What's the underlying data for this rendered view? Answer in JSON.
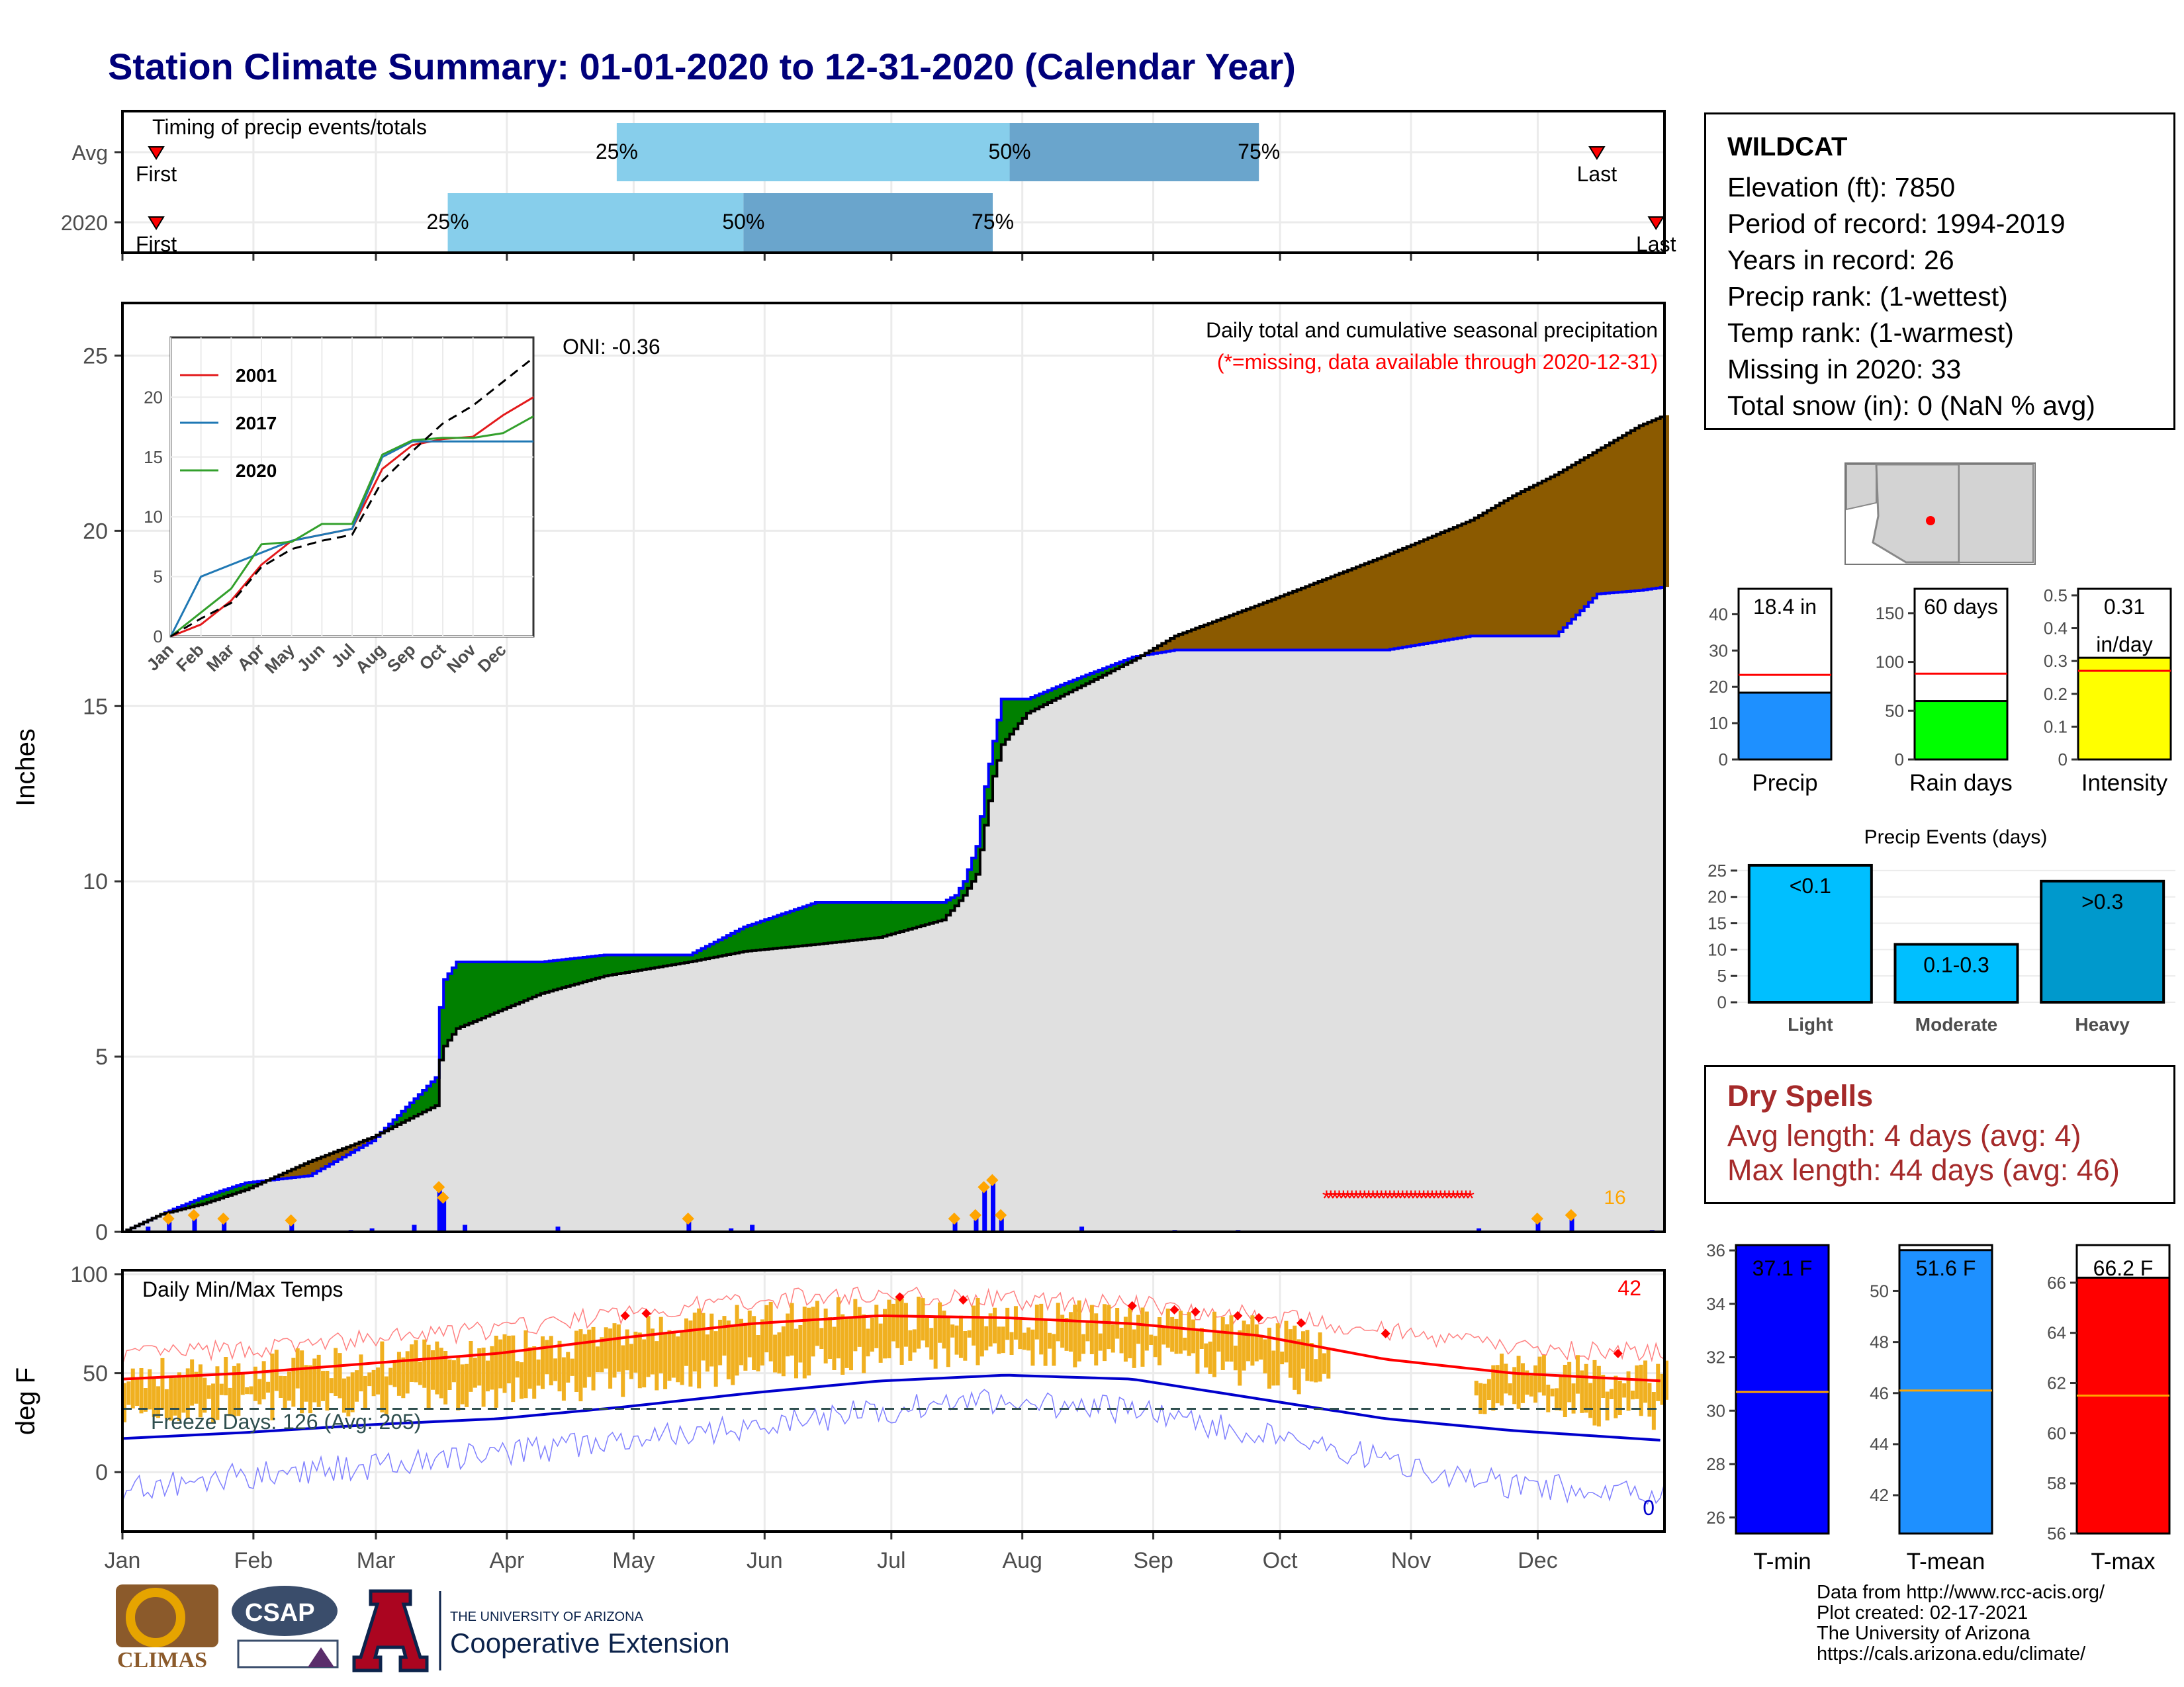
{
  "title": "Station Climate Summary: 01-01-2020 to 12-31-2020 (Calendar Year)",
  "station": {
    "name": "WILDCAT",
    "lines": [
      "Elevation (ft): 7850",
      "Period of record: 1994-2019",
      "Years in record: 26",
      "Precip rank:  (1-wettest)",
      "Temp rank:  (1-warmest)",
      "Missing in 2020: 33",
      "Total snow (in): 0 (NaN % avg)"
    ]
  },
  "dry_spells": {
    "title": "Dry Spells",
    "avg_length": "Avg length: 4 days (avg: 4)",
    "max_length": "Max length: 44 days (avg: 46)"
  },
  "credits": [
    "Data from http://www.rcc-acis.org/",
    "Plot created: 02-17-2021",
    "The University of Arizona",
    "https://cals.arizona.edu/climate/"
  ],
  "logos": {
    "climas": "CLIMAS",
    "csap": "CSAP",
    "ua_small": "THE UNIVERSITY OF ARIZONA",
    "ua_big": "Cooperative Extension"
  },
  "colors": {
    "observed_fill": "#e0e0e0",
    "above_avg": "#008000",
    "below_avg": "#8b5a00",
    "avg_line": "#0000ff",
    "daily_bar": "#0000ff",
    "missing": "#ff0000",
    "temp_range": "#f0b020",
    "tmax_line": "#ff0000",
    "tmin_line": "#0000cc",
    "q1": "#87ceeb",
    "q2": "#6aa5cc"
  },
  "chart_data": [
    {
      "id": "timing",
      "type": "bar",
      "title": "Timing of precip events/totals",
      "categories": [
        "Avg",
        "2020"
      ],
      "x_ticks": [
        "Jan",
        "Feb",
        "Mar",
        "Apr",
        "May",
        "Jun",
        "Jul",
        "Aug",
        "Sep",
        "Oct",
        "Nov",
        "Dec"
      ],
      "series": [
        {
          "category": "Avg",
          "first": "First",
          "first_day": 9,
          "p25_label": "25%",
          "p25_day": 118,
          "p50_label": "50%",
          "p50_day": 211,
          "p75_label": "75%",
          "p75_day": 270,
          "last": "Last",
          "last_day": 350
        },
        {
          "category": "2020",
          "first": "First",
          "first_day": 9,
          "p25_label": "25%",
          "p25_day": 78,
          "p50_label": "50%",
          "p50_day": 148,
          "p75_label": "75%",
          "p75_day": 207,
          "last": "Last",
          "last_day": 364
        }
      ]
    },
    {
      "id": "cumulative",
      "type": "area",
      "title": "Daily total and cumulative seasonal precipitation",
      "subtitle": "(*=missing, data available through 2020-12-31)",
      "ylabel": "Inches",
      "oni": "ONI: -0.36",
      "ylim": [
        0,
        26.5
      ],
      "yticks": [
        0,
        5,
        10,
        15,
        20,
        25
      ],
      "x_ticks": [
        "Jan",
        "Feb",
        "Mar",
        "Apr",
        "May",
        "Jun",
        "Jul",
        "Aug",
        "Sep",
        "Oct",
        "Nov",
        "Dec"
      ],
      "x": [
        1,
        10,
        20,
        30,
        45,
        60,
        75,
        76,
        77,
        80,
        100,
        115,
        135,
        148,
        165,
        180,
        195,
        198,
        200,
        203,
        205,
        207,
        209,
        215,
        225,
        240,
        250,
        270,
        300,
        320,
        330,
        340,
        350,
        360,
        366
      ],
      "avg_cumulative": [
        0,
        0.5,
        0.8,
        1.2,
        2.0,
        2.7,
        3.6,
        4.9,
        5.3,
        5.8,
        6.8,
        7.3,
        7.7,
        8.0,
        8.2,
        8.4,
        8.9,
        9.3,
        9.6,
        10.2,
        11.6,
        13.0,
        13.9,
        14.8,
        15.4,
        16.3,
        17.0,
        17.9,
        19.3,
        20.3,
        21.0,
        21.6,
        22.3,
        23.0,
        23.3
      ],
      "series": [
        {
          "name": "2020 cumulative",
          "values": [
            0,
            0.5,
            1.0,
            1.4,
            1.6,
            2.6,
            4.4,
            6.4,
            7.2,
            7.7,
            7.7,
            7.9,
            7.9,
            8.7,
            9.4,
            9.4,
            9.4,
            9.6,
            10.0,
            11.0,
            12.7,
            14.0,
            15.2,
            15.2,
            15.7,
            16.4,
            16.6,
            16.6,
            16.6,
            17.0,
            17.0,
            17.0,
            18.2,
            18.3,
            18.4
          ]
        }
      ],
      "daily_precip": [
        {
          "day": 7,
          "value": 0.15
        },
        {
          "day": 12,
          "value": 0.3
        },
        {
          "day": 18,
          "value": 0.4
        },
        {
          "day": 25,
          "value": 0.3
        },
        {
          "day": 41,
          "value": 0.25
        },
        {
          "day": 55,
          "value": 0.05
        },
        {
          "day": 60,
          "value": 0.1
        },
        {
          "day": 70,
          "value": 0.2
        },
        {
          "day": 76,
          "value": 1.2
        },
        {
          "day": 77,
          "value": 0.9
        },
        {
          "day": 82,
          "value": 0.2
        },
        {
          "day": 104,
          "value": 0.15
        },
        {
          "day": 135,
          "value": 0.3
        },
        {
          "day": 145,
          "value": 0.1
        },
        {
          "day": 150,
          "value": 0.2
        },
        {
          "day": 198,
          "value": 0.3
        },
        {
          "day": 203,
          "value": 0.4
        },
        {
          "day": 205,
          "value": 1.2
        },
        {
          "day": 207,
          "value": 1.4
        },
        {
          "day": 209,
          "value": 0.4
        },
        {
          "day": 228,
          "value": 0.15
        },
        {
          "day": 250,
          "value": 0.05
        },
        {
          "day": 265,
          "value": 0.05
        },
        {
          "day": 322,
          "value": 0.1
        },
        {
          "day": 336,
          "value": 0.3
        },
        {
          "day": 344,
          "value": 0.4
        },
        {
          "day": 363,
          "value": 0.05
        }
      ],
      "missing_range": [
        286,
        320
      ],
      "missing_count": "16"
    },
    {
      "id": "inset",
      "type": "line",
      "x_ticks": [
        "Jan",
        "Feb",
        "Mar",
        "Apr",
        "May",
        "Jun",
        "Jul",
        "Aug",
        "Sep",
        "Oct",
        "Nov",
        "Dec"
      ],
      "ylim": [
        0,
        25
      ],
      "yticks": [
        0,
        5,
        10,
        15,
        20
      ],
      "series": [
        {
          "name": "2001",
          "color": "#e31a1c",
          "values": [
            0,
            1,
            3,
            6,
            8,
            8.5,
            9,
            14,
            16,
            16.5,
            16.7,
            18.5,
            20
          ]
        },
        {
          "name": "2017",
          "color": "#1f78b4",
          "values": [
            0,
            5,
            6,
            7,
            8,
            8.5,
            9,
            15,
            16.3,
            16.3,
            16.3,
            16.3,
            16.3
          ]
        },
        {
          "name": "2020",
          "color": "#33a02c",
          "values": [
            0,
            2,
            4,
            7.7,
            7.9,
            9.4,
            9.4,
            15.2,
            16.4,
            16.6,
            16.6,
            17,
            18.4
          ]
        },
        {
          "name": "avg",
          "color": "#000000",
          "values": [
            0,
            1.5,
            2.8,
            5.8,
            7.3,
            8.0,
            8.5,
            13,
            15.5,
            17.8,
            19.3,
            21.3,
            23.3
          ]
        }
      ]
    },
    {
      "id": "totals",
      "type": "bar",
      "categories": [
        "Precip",
        "Rain days",
        "Intensity"
      ],
      "series": [
        {
          "name": "Precip",
          "value": 18.4,
          "label": "18.4 in",
          "avg": 23.3,
          "ylim": [
            0,
            47
          ],
          "yticks": [
            0,
            10,
            20,
            30,
            40
          ],
          "color": "#1e90ff"
        },
        {
          "name": "Rain days",
          "value": 60,
          "label": "60 days",
          "avg": 88,
          "ylim": [
            0,
            175
          ],
          "yticks": [
            0,
            50,
            100,
            150
          ],
          "color": "#00ff00"
        },
        {
          "name": "Intensity",
          "value": 0.31,
          "label": "0.31",
          "label2": "in/day",
          "avg": 0.27,
          "ylim": [
            0,
            0.52
          ],
          "yticks": [
            0.0,
            0.1,
            0.2,
            0.3,
            0.4,
            0.5
          ],
          "color": "#ffff00"
        }
      ]
    },
    {
      "id": "events",
      "type": "bar",
      "title": "Precip Events (days)",
      "categories": [
        "Light",
        "Moderate",
        "Heavy"
      ],
      "values": [
        26,
        11,
        23
      ],
      "labels": [
        "<0.1",
        "0.1-0.3",
        ">0.3"
      ],
      "colors": [
        "#00bfff",
        "#00bfff",
        "#0099cc"
      ],
      "ylim": [
        0,
        27
      ],
      "yticks": [
        0,
        5,
        10,
        15,
        20,
        25
      ]
    },
    {
      "id": "temps",
      "type": "line",
      "title": "Daily Min/Max Temps",
      "ylabel": "deg F",
      "ylim": [
        -30,
        102
      ],
      "yticks": [
        0,
        50,
        100
      ],
      "x_ticks": [
        "Jan",
        "Feb",
        "Mar",
        "Apr",
        "May",
        "Jun",
        "Jul",
        "Aug",
        "Sep",
        "Oct",
        "Nov",
        "Dec"
      ],
      "freeze_label": "Freeze Days: 126 (Avg: 205)",
      "freeze_line": 32,
      "hot_count": "42",
      "cold_count": "0",
      "missing_range": [
        287,
        320
      ],
      "avg_max": {
        "x": [
          1,
          30,
          60,
          90,
          120,
          150,
          180,
          210,
          240,
          270,
          300,
          330,
          366
        ],
        "y": [
          47,
          50,
          55,
          60,
          68,
          75,
          79,
          78,
          75,
          69,
          57,
          50,
          46
        ]
      },
      "avg_min": {
        "x": [
          1,
          30,
          60,
          90,
          120,
          150,
          180,
          210,
          240,
          270,
          300,
          330,
          366
        ],
        "y": [
          17,
          20,
          24,
          27,
          33,
          40,
          46,
          49,
          47,
          37,
          27,
          21,
          16
        ]
      },
      "record_max": {
        "x": [
          1,
          30,
          60,
          90,
          120,
          150,
          180,
          210,
          240,
          270,
          300,
          330,
          366
        ],
        "y": [
          62,
          65,
          70,
          75,
          83,
          90,
          93,
          90,
          88,
          82,
          74,
          66,
          63
        ]
      },
      "record_min": {
        "x": [
          1,
          30,
          60,
          90,
          120,
          150,
          180,
          210,
          240,
          270,
          300,
          330,
          366
        ],
        "y": [
          -10,
          -3,
          2,
          8,
          15,
          22,
          30,
          35,
          30,
          18,
          5,
          -8,
          -12
        ]
      }
    },
    {
      "id": "temp_summary",
      "type": "bar",
      "categories": [
        "T-min",
        "T-mean",
        "T-max"
      ],
      "series": [
        {
          "name": "T-min",
          "value": 37.1,
          "label": "37.1 F",
          "avg": 30.7,
          "ylim": [
            25.4,
            36.2
          ],
          "yticks": [
            26,
            28,
            30,
            32,
            34,
            36
          ],
          "color": "#0000ff"
        },
        {
          "name": "T-mean",
          "value": 51.6,
          "label": "51.6 F",
          "avg": 46.1,
          "ylim": [
            40.5,
            51.8
          ],
          "yticks": [
            42,
            44,
            46,
            48,
            50
          ],
          "color": "#1e90ff"
        },
        {
          "name": "T-max",
          "value": 66.2,
          "label": "66.2 F",
          "avg": 61.5,
          "ylim": [
            56,
            67.5
          ],
          "yticks": [
            56,
            58,
            60,
            62,
            64,
            66
          ],
          "color": "#ff0000"
        }
      ]
    }
  ]
}
